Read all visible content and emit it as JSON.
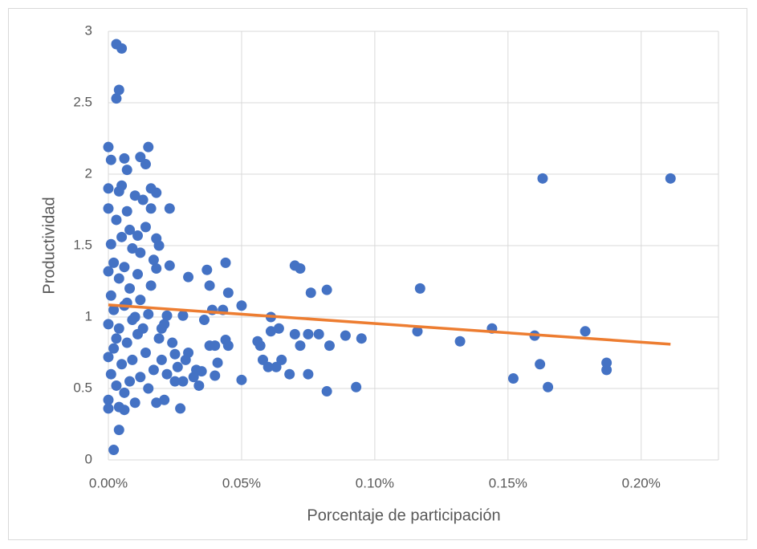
{
  "chart_data": {
    "type": "scatter",
    "x_label": "Porcentaje de participación",
    "y_label": "Productividad",
    "xlim": [
      0,
      0.229
    ],
    "ylim": [
      0,
      3
    ],
    "xticks": [
      {
        "value": 0,
        "label": "0.00%"
      },
      {
        "value": 0.05,
        "label": "0.05%"
      },
      {
        "value": 0.1,
        "label": "0.10%"
      },
      {
        "value": 0.15,
        "label": "0.15%"
      },
      {
        "value": 0.2,
        "label": "0.20%"
      }
    ],
    "yticks": [
      0,
      0.5,
      1,
      1.5,
      2,
      2.5,
      3
    ],
    "grid": true,
    "series": [
      {
        "color": "#4472c4",
        "x": [
          0.211,
          0.163,
          0.179,
          0.187,
          0.187,
          0.165,
          0.162,
          0.16,
          0.152,
          0.144,
          0.132,
          0.117,
          0.116,
          0.095,
          0.093,
          0.089,
          0.083,
          0.082,
          0.082,
          0.079,
          0.076,
          0.075,
          0.075,
          0.072,
          0.072,
          0.07,
          0.07,
          0.068,
          0.065,
          0.064,
          0.063,
          0.061,
          0.061,
          0.06,
          0.058,
          0.057,
          0.056,
          0.05,
          0.05,
          0.045,
          0.045,
          0.044,
          0.044,
          0.043,
          0.04,
          0.04,
          0.039,
          0.038,
          0.037,
          0.036,
          0.035,
          0.033,
          0.03,
          0.03,
          0.028,
          0.028,
          0.027,
          0.025,
          0.023,
          0.023,
          0.022,
          0.021,
          0.02,
          0.019,
          0.018,
          0.018,
          0.003,
          0.005,
          0.004,
          0.003,
          0.0,
          0.015,
          0.001,
          0.006,
          0.012,
          0.014,
          0.007,
          0.016,
          0.0,
          0.005,
          0.004,
          0.01,
          0.013,
          0.0,
          0.007,
          0.016,
          0.003,
          0.008,
          0.014,
          0.011,
          0.018,
          0.005,
          0.001,
          0.009,
          0.012,
          0.017,
          0.002,
          0.006,
          0.011,
          0.0,
          0.004,
          0.016,
          0.008,
          0.001,
          0.012,
          0.006,
          0.002,
          0.015,
          0.009,
          0.0,
          0.004,
          0.011,
          0.019,
          0.007,
          0.002,
          0.014,
          0.0,
          0.009,
          0.005,
          0.017,
          0.001,
          0.012,
          0.008,
          0.003,
          0.015,
          0.006,
          0.0,
          0.01,
          0.004,
          0.0,
          0.006,
          0.004,
          0.002,
          0.022,
          0.024,
          0.02,
          0.026,
          0.013,
          0.01,
          0.003,
          0.007,
          0.018,
          0.021,
          0.025,
          0.032,
          0.029,
          0.034,
          0.038,
          0.041
        ],
        "values": [
          1.97,
          1.97,
          0.9,
          0.68,
          0.63,
          0.51,
          0.67,
          0.87,
          0.57,
          0.92,
          0.83,
          1.2,
          0.9,
          0.85,
          0.51,
          0.87,
          0.8,
          1.19,
          0.48,
          0.88,
          1.17,
          0.88,
          0.6,
          0.8,
          1.34,
          1.36,
          0.88,
          0.6,
          0.7,
          0.92,
          0.65,
          1.0,
          0.9,
          0.65,
          0.7,
          0.8,
          0.83,
          1.08,
          0.56,
          1.17,
          0.8,
          1.38,
          0.84,
          1.05,
          0.8,
          0.59,
          1.05,
          1.22,
          1.33,
          0.98,
          0.62,
          0.63,
          1.28,
          0.75,
          1.01,
          0.55,
          0.36,
          0.74,
          1.76,
          1.36,
          1.01,
          0.42,
          0.92,
          1.5,
          1.87,
          0.4,
          2.91,
          2.88,
          2.59,
          2.53,
          2.19,
          2.19,
          2.1,
          2.11,
          2.12,
          2.07,
          2.03,
          1.9,
          1.9,
          1.92,
          1.88,
          1.85,
          1.82,
          1.76,
          1.74,
          1.76,
          1.68,
          1.61,
          1.63,
          1.57,
          1.55,
          1.56,
          1.51,
          1.48,
          1.45,
          1.4,
          1.38,
          1.35,
          1.3,
          1.32,
          1.27,
          1.22,
          1.2,
          1.15,
          1.12,
          1.08,
          1.05,
          1.02,
          0.98,
          0.95,
          0.92,
          0.88,
          0.85,
          0.82,
          0.78,
          0.75,
          0.72,
          0.7,
          0.67,
          0.63,
          0.6,
          0.58,
          0.55,
          0.52,
          0.5,
          0.47,
          0.42,
          0.4,
          0.37,
          0.36,
          0.35,
          0.21,
          0.07,
          0.6,
          0.82,
          0.7,
          0.65,
          0.92,
          1.0,
          0.85,
          1.1,
          1.34,
          0.95,
          0.55,
          0.58,
          0.7,
          0.52,
          0.8,
          0.68
        ]
      }
    ],
    "trendline": {
      "color": "#ed7d31",
      "x": [
        0,
        0.211
      ],
      "values": [
        1.085,
        0.81
      ]
    }
  }
}
